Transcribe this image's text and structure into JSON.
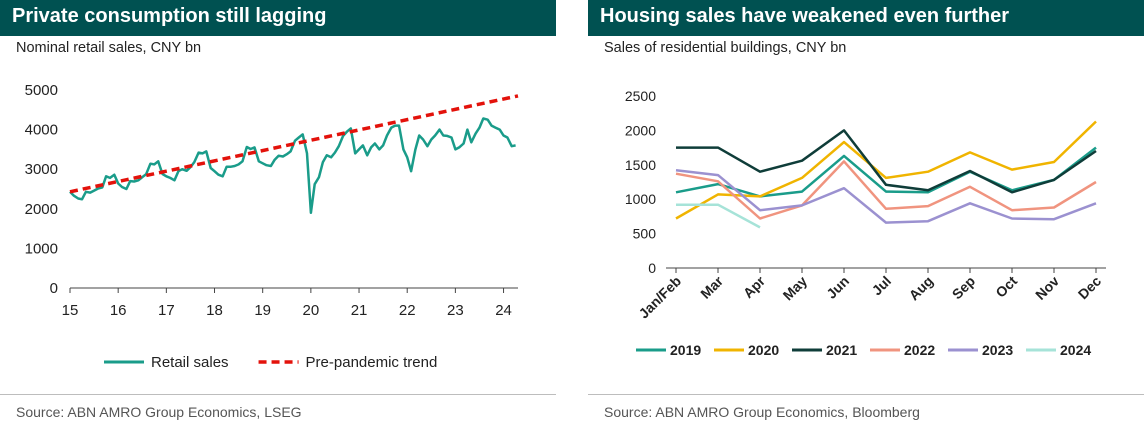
{
  "panels": [
    {
      "title": "Private consumption still lagging",
      "subtitle": "Nominal retail sales, CNY bn",
      "source": "Source: ABN AMRO Group Economics, LSEG"
    },
    {
      "title": "Housing sales have weakened even further",
      "subtitle": "Sales of residential buildings, CNY bn",
      "source": "Source: ABN AMRO Group Economics, Bloomberg"
    }
  ],
  "chart_data": [
    {
      "type": "line",
      "title": "Private consumption still lagging",
      "subtitle": "Nominal retail sales, CNY bn",
      "xlabel": "",
      "ylabel": "",
      "x_ticks": [
        "15",
        "16",
        "17",
        "18",
        "19",
        "20",
        "21",
        "22",
        "23",
        "24"
      ],
      "xlim": [
        2015.0,
        2024.3
      ],
      "ylim": [
        0,
        5000
      ],
      "y_ticks": [
        0,
        1000,
        2000,
        3000,
        4000,
        5000
      ],
      "grid": false,
      "legend_position": "bottom",
      "series": [
        {
          "name": "Retail sales",
          "color": "#1a9c8a",
          "style": "solid",
          "x": [
            2015.0,
            2015.08,
            2015.17,
            2015.25,
            2015.33,
            2015.42,
            2015.5,
            2015.58,
            2015.67,
            2015.75,
            2015.83,
            2015.92,
            2016.0,
            2016.08,
            2016.17,
            2016.25,
            2016.33,
            2016.42,
            2016.5,
            2016.58,
            2016.67,
            2016.75,
            2016.83,
            2016.92,
            2017.0,
            2017.08,
            2017.17,
            2017.25,
            2017.33,
            2017.42,
            2017.5,
            2017.58,
            2017.67,
            2017.75,
            2017.83,
            2017.92,
            2018.0,
            2018.08,
            2018.17,
            2018.25,
            2018.33,
            2018.42,
            2018.5,
            2018.58,
            2018.67,
            2018.75,
            2018.83,
            2018.92,
            2019.0,
            2019.08,
            2019.17,
            2019.25,
            2019.33,
            2019.42,
            2019.5,
            2019.58,
            2019.67,
            2019.75,
            2019.83,
            2019.92,
            2020.0,
            2020.08,
            2020.17,
            2020.25,
            2020.33,
            2020.42,
            2020.5,
            2020.58,
            2020.67,
            2020.75,
            2020.83,
            2020.92,
            2021.0,
            2021.08,
            2021.17,
            2021.25,
            2021.33,
            2021.42,
            2021.5,
            2021.58,
            2021.67,
            2021.75,
            2021.83,
            2021.92,
            2022.0,
            2022.08,
            2022.17,
            2022.25,
            2022.33,
            2022.42,
            2022.5,
            2022.58,
            2022.67,
            2022.75,
            2022.83,
            2022.92,
            2023.0,
            2023.08,
            2023.17,
            2023.25,
            2023.33,
            2023.42,
            2023.5,
            2023.58,
            2023.67,
            2023.75,
            2023.83,
            2023.92,
            2024.0,
            2024.08,
            2024.17,
            2024.25
          ],
          "values": [
            2430,
            2330,
            2260,
            2240,
            2430,
            2410,
            2460,
            2510,
            2540,
            2820,
            2780,
            2860,
            2640,
            2550,
            2500,
            2700,
            2690,
            2720,
            2800,
            2870,
            3140,
            3120,
            3200,
            2880,
            2820,
            2780,
            2720,
            2950,
            3000,
            2960,
            3050,
            3180,
            3420,
            3400,
            3450,
            3030,
            2950,
            2860,
            2820,
            3060,
            3060,
            3080,
            3120,
            3200,
            3560,
            3510,
            3550,
            3200,
            3150,
            3100,
            3080,
            3240,
            3340,
            3320,
            3380,
            3450,
            3720,
            3800,
            3880,
            3400,
            1900,
            2620,
            2800,
            3180,
            3350,
            3300,
            3420,
            3580,
            3840,
            3950,
            4030,
            3400,
            3500,
            3600,
            3350,
            3550,
            3650,
            3500,
            3600,
            3850,
            4050,
            4100,
            4100,
            3500,
            3300,
            2950,
            3500,
            3850,
            3750,
            3580,
            3750,
            3850,
            4000,
            3850,
            3840,
            3800,
            3500,
            3550,
            3650,
            4000,
            3680,
            3900,
            4050,
            4280,
            4250,
            4100,
            4050,
            4000,
            3850,
            3800,
            3580,
            3600
          ],
          "_comment_": ""
        },
        {
          "name": "Pre-pandemic trend",
          "color": "#e3120b",
          "style": "dashed",
          "x": [
            2015.0,
            2024.3
          ],
          "values": [
            2430,
            4850
          ]
        }
      ]
    },
    {
      "type": "line",
      "title": "Housing sales have weakened even further",
      "subtitle": "Sales of residential buildings, CNY bn",
      "xlabel": "",
      "ylabel": "",
      "categories": [
        "Jan/Feb",
        "Mar",
        "Apr",
        "May",
        "Jun",
        "Jul",
        "Aug",
        "Sep",
        "Oct",
        "Nov",
        "Dec"
      ],
      "ylim": [
        0,
        2500
      ],
      "y_ticks": [
        0,
        500,
        1000,
        1500,
        2000,
        2500
      ],
      "grid": false,
      "legend_position": "bottom",
      "series": [
        {
          "name": "2019",
          "color": "#1a9c8a",
          "values": [
            1100,
            1220,
            1040,
            1110,
            1630,
            1110,
            1100,
            1400,
            1130,
            1280,
            1750
          ]
        },
        {
          "name": "2020",
          "color": "#f0b400",
          "values": [
            720,
            1070,
            1040,
            1310,
            1830,
            1310,
            1400,
            1680,
            1430,
            1540,
            2130
          ]
        },
        {
          "name": "2021",
          "color": "#0f3d39",
          "values": [
            1750,
            1750,
            1400,
            1560,
            2000,
            1210,
            1130,
            1410,
            1100,
            1280,
            1700
          ]
        },
        {
          "name": "2022",
          "color": "#f0947f",
          "values": [
            1370,
            1260,
            720,
            910,
            1550,
            860,
            900,
            1180,
            840,
            880,
            1250
          ]
        },
        {
          "name": "2023",
          "color": "#9b91d0",
          "values": [
            1420,
            1350,
            840,
            910,
            1160,
            660,
            680,
            940,
            720,
            710,
            940
          ]
        },
        {
          "name": "2024",
          "color": "#a6e3d8",
          "values": [
            920,
            920,
            590,
            null,
            null,
            null,
            null,
            null,
            null,
            null,
            null
          ]
        }
      ]
    }
  ]
}
